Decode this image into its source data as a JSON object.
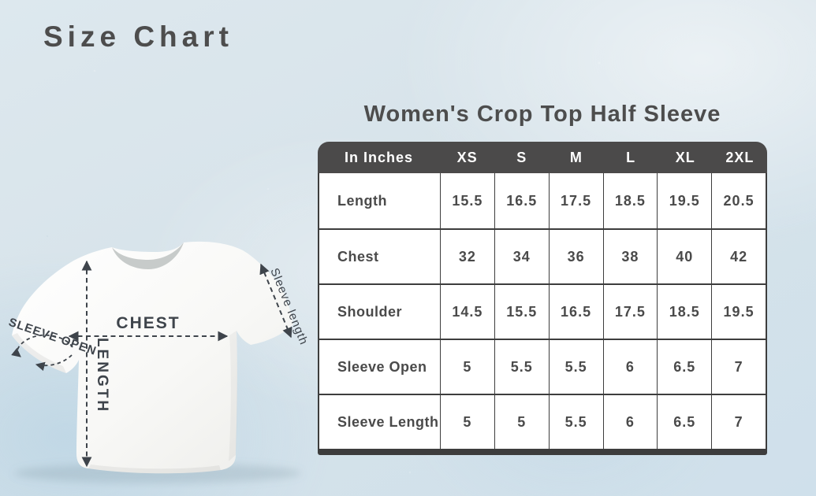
{
  "page": {
    "title": "Size Chart",
    "subtitle": "Women's Crop Top Half Sleeve"
  },
  "diagram": {
    "labels": {
      "chest": "CHEST",
      "length": "LENGTH",
      "sleeve_open": "SLEEVE OPEN",
      "sleeve_length": "Sleeve length"
    }
  },
  "chart_data": {
    "type": "table",
    "title": "Women's Crop Top Half Sleeve",
    "unit_label": "In Inches",
    "columns": [
      "In Inches",
      "XS",
      "S",
      "M",
      "L",
      "XL",
      "2XL"
    ],
    "rows": [
      {
        "label": "Length",
        "values": [
          "15.5",
          "16.5",
          "17.5",
          "18.5",
          "19.5",
          "20.5"
        ]
      },
      {
        "label": "Chest",
        "values": [
          "32",
          "34",
          "36",
          "38",
          "40",
          "42"
        ]
      },
      {
        "label": "Shoulder",
        "values": [
          "14.5",
          "15.5",
          "16.5",
          "17.5",
          "18.5",
          "19.5"
        ]
      },
      {
        "label": "Sleeve Open",
        "values": [
          "5",
          "5.5",
          "5.5",
          "6",
          "6.5",
          "7"
        ]
      },
      {
        "label": "Sleeve Length",
        "values": [
          "5",
          "5",
          "5.5",
          "6",
          "6.5",
          "7"
        ]
      }
    ]
  },
  "colors": {
    "background": "#d7e3ea",
    "header_bg": "#4b4a4a",
    "header_text": "#ffffff",
    "cell_bg": "#ffffff",
    "cell_text": "#4a4a4a",
    "table_border": "#3d3d3d",
    "title_text": "#4d4d4d",
    "annotation": "#3e444b",
    "shirt": "#fafaf8"
  }
}
